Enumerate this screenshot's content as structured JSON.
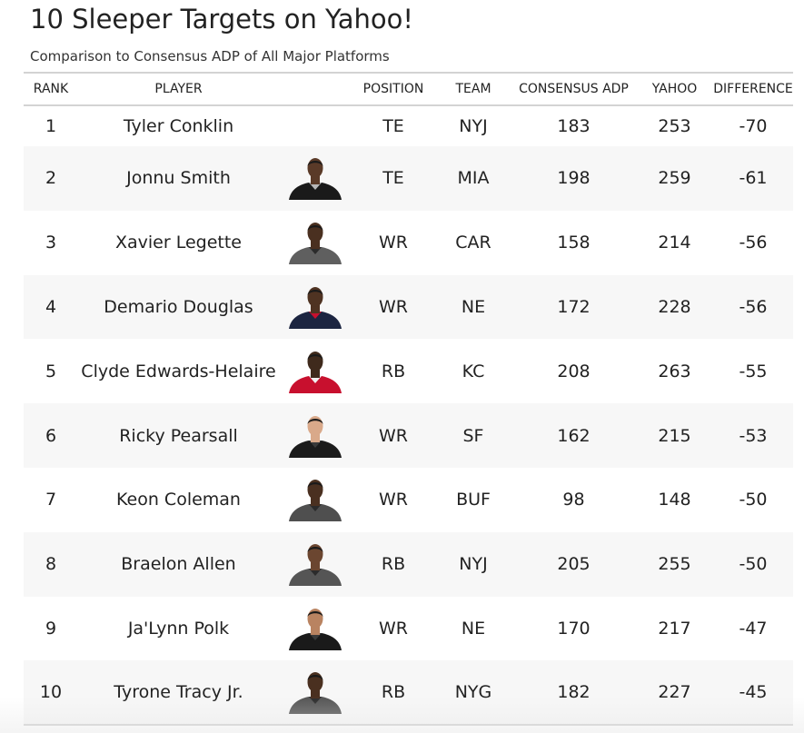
{
  "title": "10 Sleeper Targets on Yahoo!",
  "subtitle": "Comparison to Consensus ADP of All Major Platforms",
  "columns": {
    "rank": "RANK",
    "player": "PLAYER",
    "position": "POSITION",
    "team": "TEAM",
    "consensus_adp": "CONSENSUS ADP",
    "yahoo": "YAHOO",
    "difference": "DIFFERENCE"
  },
  "rows": [
    {
      "rank": "1",
      "player": "Tyler Conklin",
      "headshot": null,
      "position": "TE",
      "team": "NYJ",
      "consensus_adp": "183",
      "yahoo": "253",
      "difference": "-70"
    },
    {
      "rank": "2",
      "player": "Jonnu Smith",
      "headshot": {
        "jersey": "#1a1a1a",
        "skin": "#5a3a28",
        "trim": "#b8b8b8"
      },
      "position": "TE",
      "team": "MIA",
      "consensus_adp": "198",
      "yahoo": "259",
      "difference": "-61"
    },
    {
      "rank": "3",
      "player": "Xavier Legette",
      "headshot": {
        "jersey": "#5f5f5f",
        "skin": "#4a3020",
        "trim": "#2b2b2b"
      },
      "position": "WR",
      "team": "CAR",
      "consensus_adp": "158",
      "yahoo": "214",
      "difference": "-56"
    },
    {
      "rank": "4",
      "player": "Demario Douglas",
      "headshot": {
        "jersey": "#1c2541",
        "skin": "#4f3322",
        "trim": "#c8102e"
      },
      "position": "WR",
      "team": "NE",
      "consensus_adp": "172",
      "yahoo": "228",
      "difference": "-56"
    },
    {
      "rank": "5",
      "player": "Clyde Edwards-Helaire",
      "headshot": {
        "jersey": "#c8102e",
        "skin": "#3f2a1c",
        "trim": "#f0f0f0"
      },
      "position": "RB",
      "team": "KC",
      "consensus_adp": "208",
      "yahoo": "263",
      "difference": "-55"
    },
    {
      "rank": "6",
      "player": "Ricky Pearsall",
      "headshot": {
        "jersey": "#1b1b1b",
        "skin": "#d9a98a",
        "trim": "#3a3a3a"
      },
      "position": "WR",
      "team": "SF",
      "consensus_adp": "162",
      "yahoo": "215",
      "difference": "-53"
    },
    {
      "rank": "7",
      "player": "Keon Coleman",
      "headshot": {
        "jersey": "#4f4f4f",
        "skin": "#4a3020",
        "trim": "#2b2b2b"
      },
      "position": "WR",
      "team": "BUF",
      "consensus_adp": "98",
      "yahoo": "148",
      "difference": "-50"
    },
    {
      "rank": "8",
      "player": "Braelon Allen",
      "headshot": {
        "jersey": "#555555",
        "skin": "#6b4630",
        "trim": "#2b2b2b"
      },
      "position": "RB",
      "team": "NYJ",
      "consensus_adp": "205",
      "yahoo": "255",
      "difference": "-50"
    },
    {
      "rank": "9",
      "player": "Ja'Lynn Polk",
      "headshot": {
        "jersey": "#1a1a1a",
        "skin": "#b98361",
        "trim": "#3a3a3a"
      },
      "position": "WR",
      "team": "NE",
      "consensus_adp": "170",
      "yahoo": "217",
      "difference": "-47"
    },
    {
      "rank": "10",
      "player": "Tyrone Tracy Jr.",
      "headshot": {
        "jersey": "#555555",
        "skin": "#4a3020",
        "trim": "#2b2b2b"
      },
      "position": "RB",
      "team": "NYG",
      "consensus_adp": "182",
      "yahoo": "227",
      "difference": "-45"
    }
  ]
}
